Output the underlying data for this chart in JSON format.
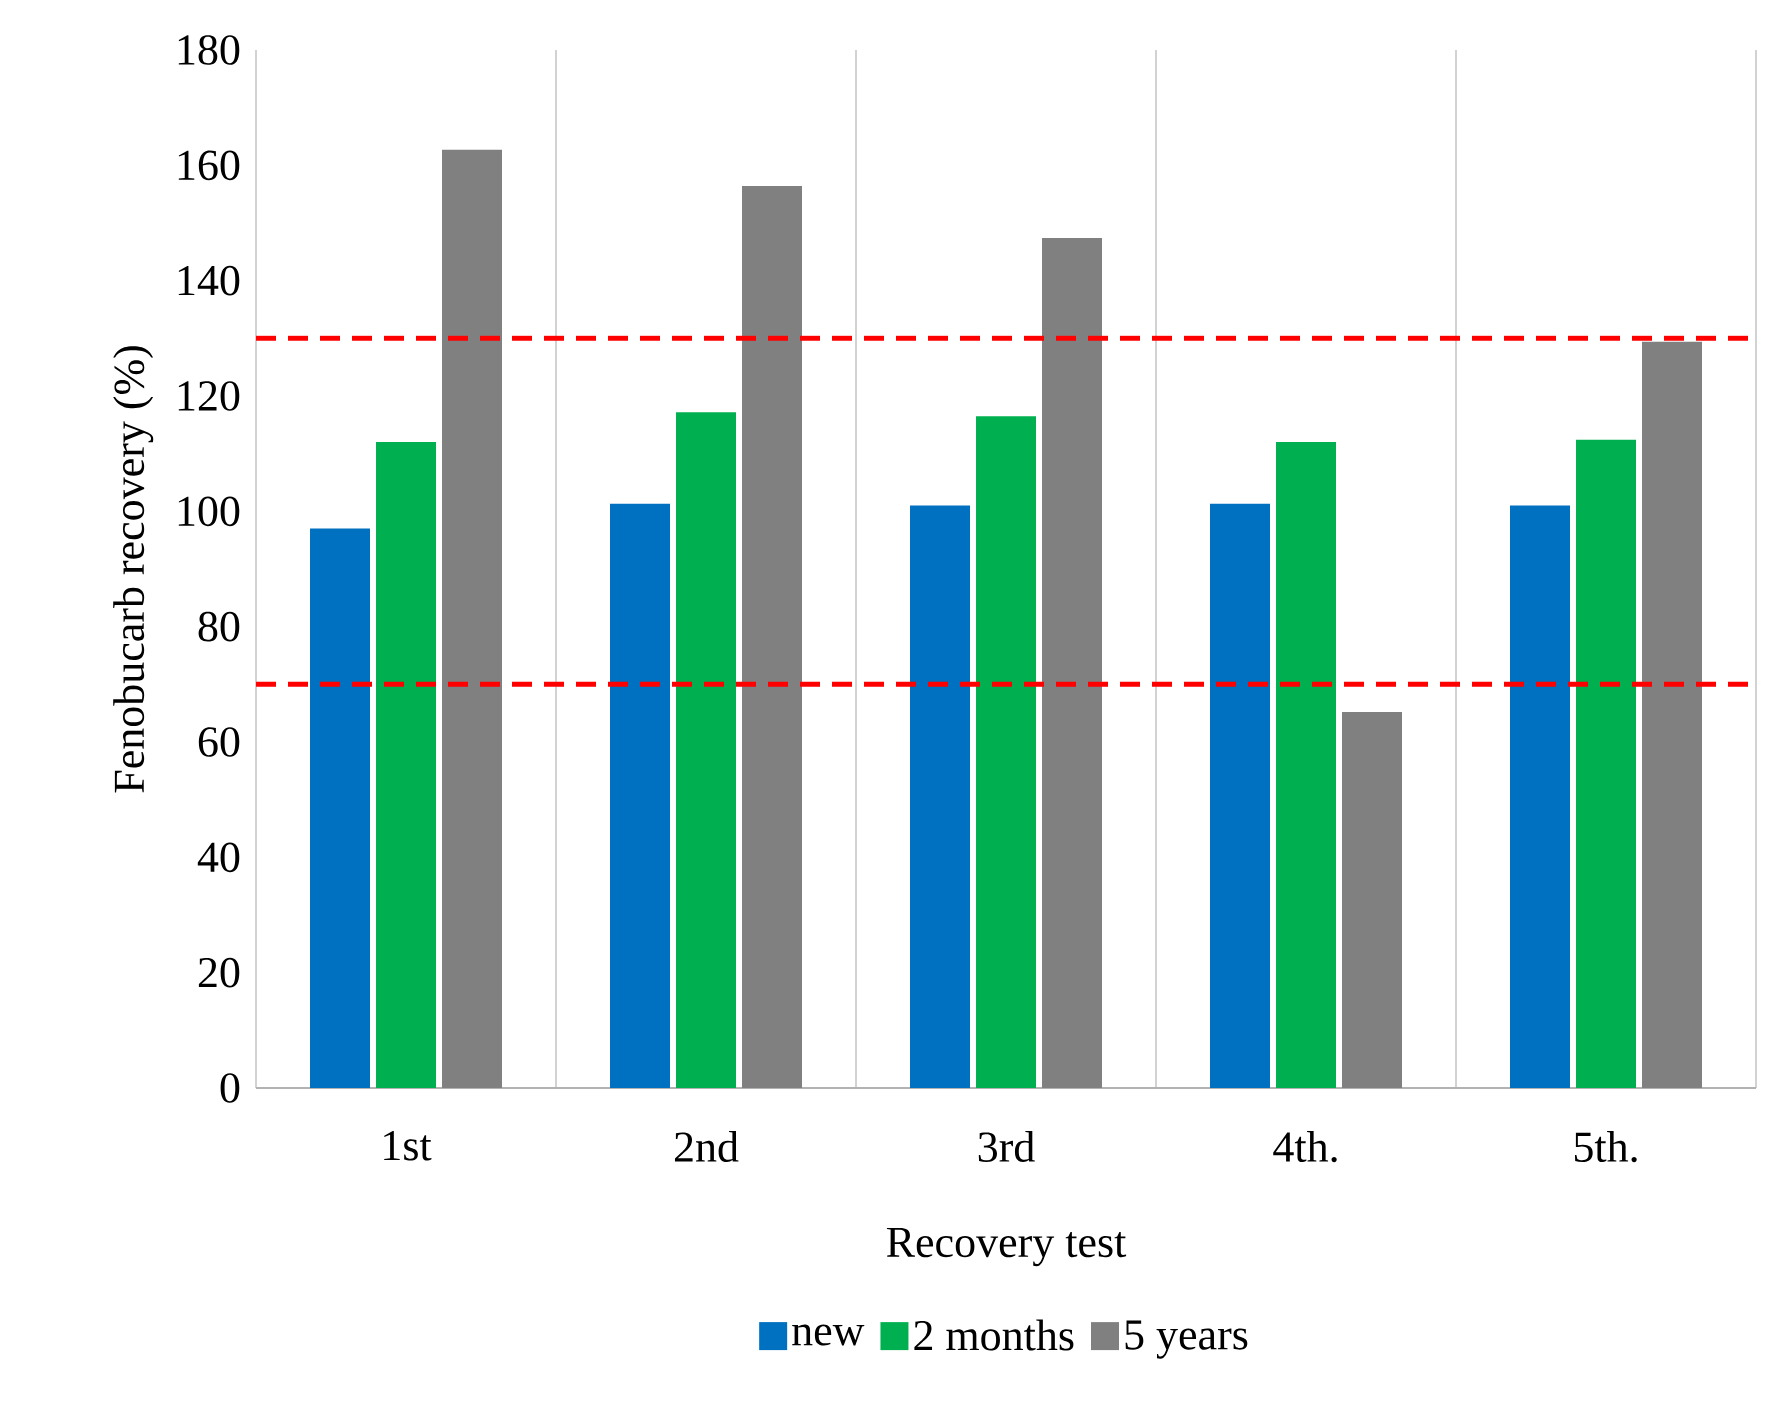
{
  "chart_data": {
    "type": "bar",
    "xlabel": "Recovery test",
    "ylabel": "Fenobucarb recovery (%)",
    "categories": [
      "1st",
      "2nd",
      "3rd",
      "4th.",
      "5th."
    ],
    "series": [
      {
        "name": "new",
        "color": "#0070c0",
        "values": [
          97,
          101.3,
          101,
          101.3,
          101
        ]
      },
      {
        "name": "2 months",
        "color": "#00b050",
        "values": [
          112,
          117.2,
          116.5,
          112,
          112.4
        ]
      },
      {
        "name": "5 years",
        "color": "#808080",
        "values": [
          162.7,
          156.4,
          147.4,
          65.2,
          129.4
        ]
      }
    ],
    "ylim": [
      0,
      180
    ],
    "yticks": [
      0,
      20,
      40,
      60,
      80,
      100,
      120,
      140,
      160,
      180
    ],
    "grid": "x",
    "legend": "bottom",
    "ref_lines": [
      {
        "axis": "y",
        "value": 130,
        "color": "#ff0000",
        "line_style": "dashed"
      },
      {
        "axis": "y",
        "value": 70,
        "color": "#ff0000",
        "line_style": "dashed"
      }
    ]
  }
}
